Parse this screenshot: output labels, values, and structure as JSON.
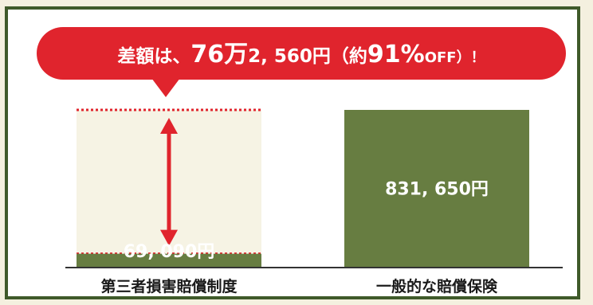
{
  "banner": {
    "prefix": "差額は、",
    "big1": "76万",
    "mid": "2, 560円（約",
    "big2": "91%",
    "suffix": "OFF）！"
  },
  "colors": {
    "bar": "#677d41",
    "banner": "#e0242d",
    "gap_fill": "#f6f3e4",
    "gap_line": "#e0242d",
    "frame": "#3f5a2a"
  },
  "chart_data": {
    "type": "bar",
    "categories": [
      "第三者損害賠償制度",
      "一般的な賠償保険"
    ],
    "values": [
      69090,
      831650
    ],
    "value_labels": [
      "69, 090円",
      "831, 650円"
    ],
    "difference_label": "差額は、76万2, 560円（約91% OFF）！",
    "ylim": [
      0,
      831650
    ],
    "grid": false,
    "legend": "none"
  }
}
